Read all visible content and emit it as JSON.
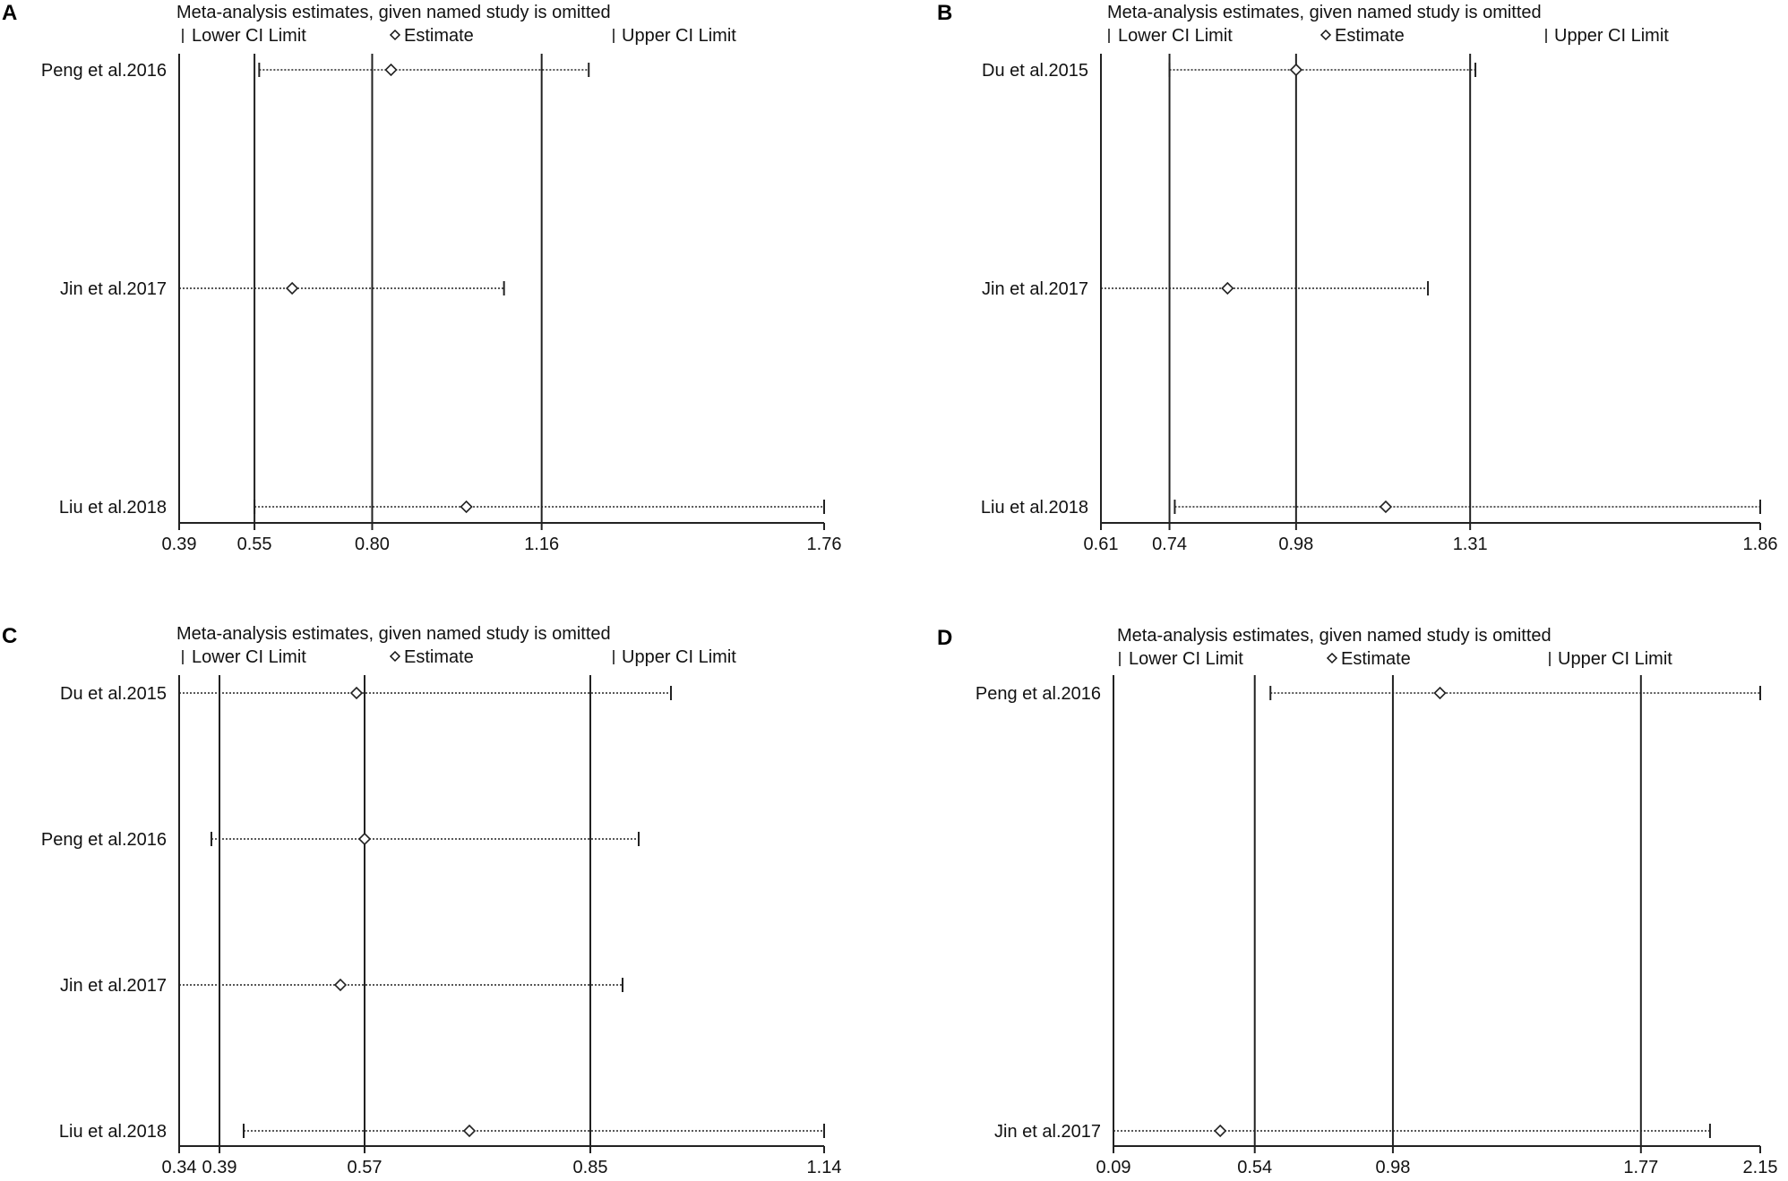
{
  "chart_data": [
    {
      "type": "scatter",
      "panel": "A",
      "title": "Meta-analysis estimates, given named study is omitted",
      "legend": {
        "lower": "Lower CI Limit",
        "estimate": "Estimate",
        "upper": "Upper CI Limit"
      },
      "xlim": [
        0.39,
        1.76
      ],
      "ticks": [
        0.39,
        0.55,
        0.8,
        1.16,
        1.76
      ],
      "tick_labels": [
        "0.39",
        "0.55",
        "0.80",
        "1.16",
        "1.76"
      ],
      "reference_lines": [
        0.55,
        0.8,
        1.16
      ],
      "studies": [
        {
          "name": "Peng et al.2016",
          "lower": 0.56,
          "estimate": 0.84,
          "upper": 1.26
        },
        {
          "name": "Jin et al.2017",
          "lower": 0.39,
          "estimate": 0.63,
          "upper": 1.08
        },
        {
          "name": "Liu et al.2018",
          "lower": 0.55,
          "estimate": 1.0,
          "upper": 1.76
        }
      ]
    },
    {
      "type": "scatter",
      "panel": "B",
      "title": "Meta-analysis estimates, given named study is omitted",
      "legend": {
        "lower": "Lower CI Limit",
        "estimate": "Estimate",
        "upper": "Upper CI Limit"
      },
      "xlim": [
        0.61,
        1.86
      ],
      "ticks": [
        0.61,
        0.74,
        0.98,
        1.31,
        1.86
      ],
      "tick_labels": [
        "0.61",
        "0.74",
        "0.98",
        "1.31",
        "1.86"
      ],
      "reference_lines": [
        0.74,
        0.98,
        1.31
      ],
      "studies": [
        {
          "name": "Du et al.2015",
          "lower": 0.74,
          "estimate": 0.98,
          "upper": 1.32
        },
        {
          "name": "Jin et al.2017",
          "lower": 0.61,
          "estimate": 0.85,
          "upper": 1.23
        },
        {
          "name": "Liu et al.2018",
          "lower": 0.75,
          "estimate": 1.15,
          "upper": 1.86
        }
      ]
    },
    {
      "type": "scatter",
      "panel": "C",
      "title": "Meta-analysis estimates, given named study is omitted",
      "legend": {
        "lower": "Lower CI Limit",
        "estimate": "Estimate",
        "upper": "Upper CI Limit"
      },
      "xlim": [
        0.34,
        1.14
      ],
      "ticks": [
        0.34,
        0.39,
        0.57,
        0.85,
        1.14
      ],
      "tick_labels": [
        "0.34",
        "0.39",
        "0.57",
        "0.85",
        "1.14"
      ],
      "reference_lines": [
        0.39,
        0.57,
        0.85
      ],
      "studies": [
        {
          "name": "Du et al.2015",
          "lower": 0.34,
          "estimate": 0.56,
          "upper": 0.95
        },
        {
          "name": "Peng et al.2016",
          "lower": 0.38,
          "estimate": 0.57,
          "upper": 0.91
        },
        {
          "name": "Jin et al.2017",
          "lower": 0.34,
          "estimate": 0.54,
          "upper": 0.89
        },
        {
          "name": "Liu et al.2018",
          "lower": 0.42,
          "estimate": 0.7,
          "upper": 1.14
        }
      ]
    },
    {
      "type": "scatter",
      "panel": "D",
      "title": "Meta-analysis estimates, given named study is omitted",
      "legend": {
        "lower": "Lower CI Limit",
        "estimate": "Estimate",
        "upper": "Upper CI Limit"
      },
      "xlim": [
        0.09,
        2.15
      ],
      "ticks": [
        0.09,
        0.54,
        0.98,
        1.77,
        2.15
      ],
      "tick_labels": [
        "0.09",
        "0.54",
        "0.98",
        "1.77",
        "2.15"
      ],
      "reference_lines": [
        0.54,
        0.98,
        1.77
      ],
      "studies": [
        {
          "name": "Peng et al.2016",
          "lower": 0.59,
          "estimate": 1.13,
          "upper": 2.15
        },
        {
          "name": "Jin et al.2017",
          "lower": 0.09,
          "estimate": 0.43,
          "upper": 1.99
        }
      ]
    }
  ]
}
